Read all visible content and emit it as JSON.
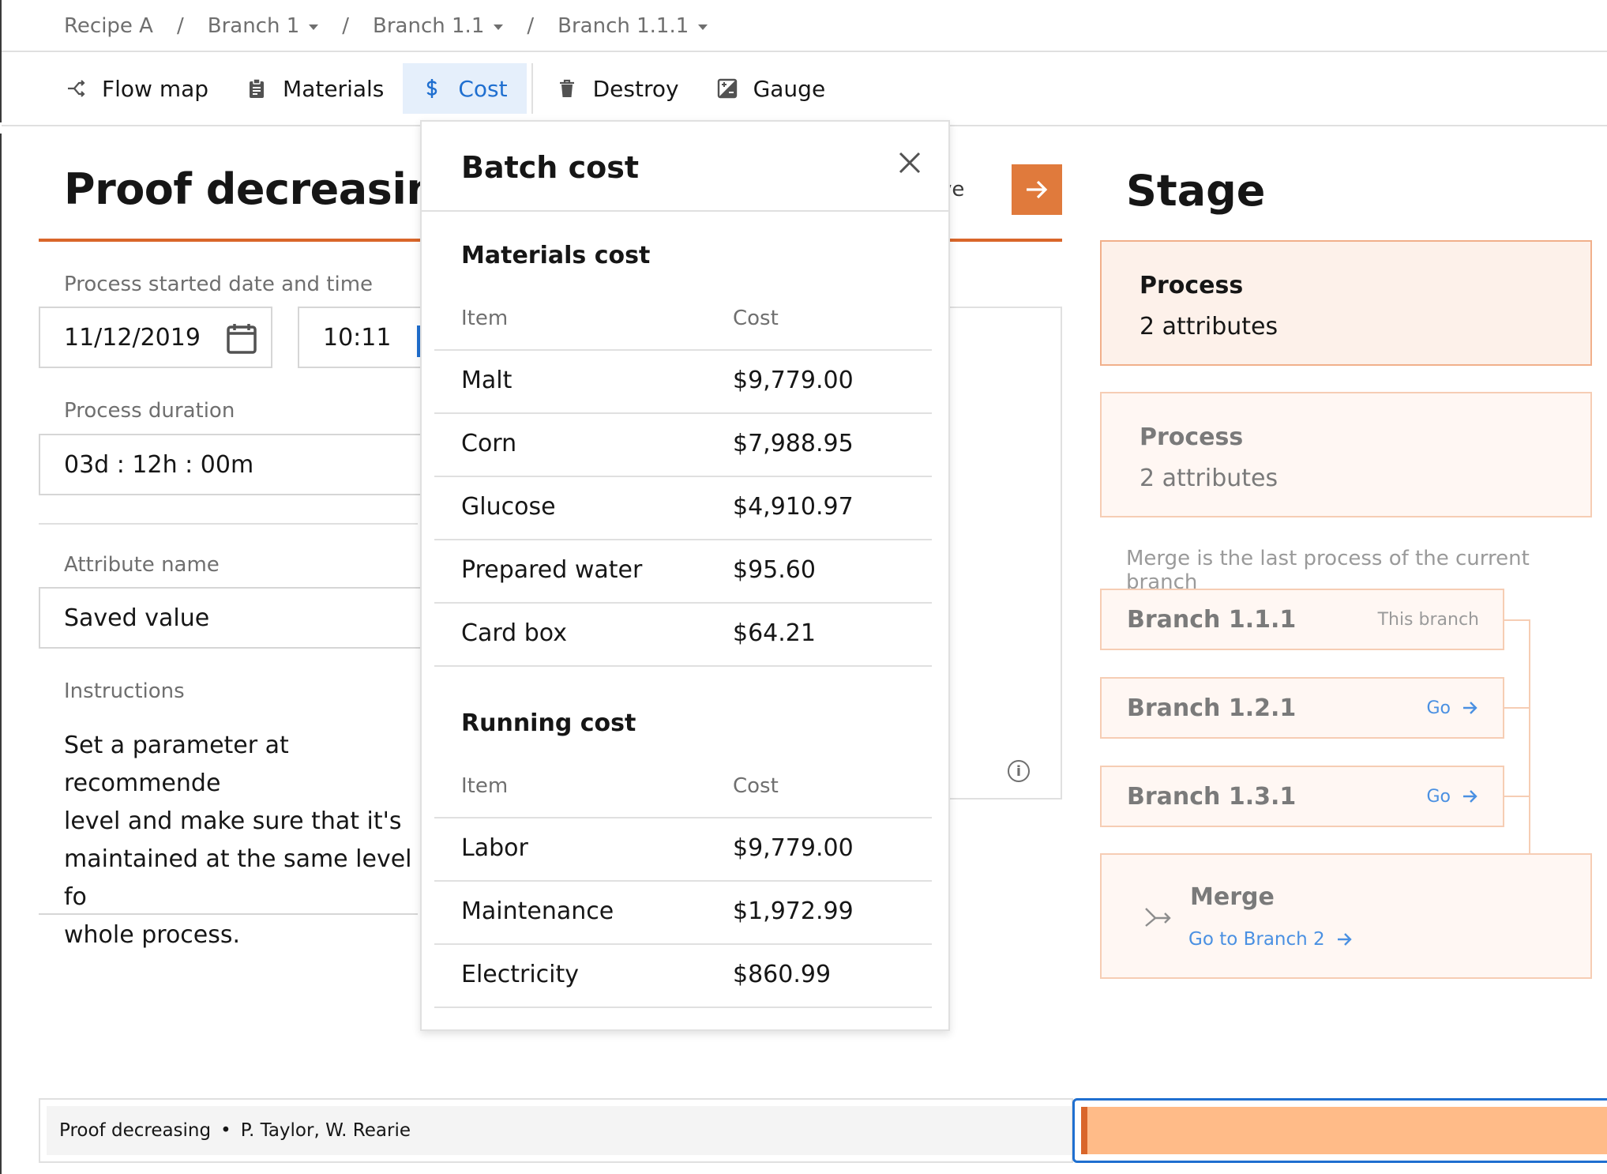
{
  "breadcrumb": [
    {
      "label": "Recipe A",
      "has_menu": false
    },
    {
      "label": "Branch 1",
      "has_menu": true
    },
    {
      "label": "Branch 1.1",
      "has_menu": true
    },
    {
      "label": "Branch 1.1.1",
      "has_menu": true
    }
  ],
  "breadcrumb_separator": "/",
  "toolbar": {
    "flow_map": "Flow map",
    "materials": "Materials",
    "cost": "Cost",
    "destroy": "Destroy",
    "gauge": "Gauge",
    "active": "Cost"
  },
  "main": {
    "title": "Proof decreasing",
    "save_label": "ve",
    "started_label": "Process started date and time",
    "date_value": "11/12/2019",
    "time_value": "10:11",
    "duration_label": "Process duration",
    "duration_value": "03d : 12h : 00m",
    "attribute_label": "Attribute name",
    "attribute_value": "Saved value",
    "instructions_label": "Instructions",
    "instructions_lines": [
      "Set a parameter at recommende",
      "level and make sure that it's",
      "maintained at the same level fo",
      "whole process."
    ]
  },
  "popover": {
    "title": "Batch cost",
    "materials": {
      "title": "Materials cost",
      "col_item": "Item",
      "col_cost": "Cost",
      "rows": [
        {
          "item": "Malt",
          "cost": "$9,779.00"
        },
        {
          "item": "Corn",
          "cost": "$7,988.95"
        },
        {
          "item": "Glucose",
          "cost": "$4,910.97"
        },
        {
          "item": "Prepared water",
          "cost": "$95.60"
        },
        {
          "item": "Card box",
          "cost": "$64.21"
        }
      ]
    },
    "running": {
      "title": "Running cost",
      "col_item": "Item",
      "col_cost": "Cost",
      "rows": [
        {
          "item": "Labor",
          "cost": "$9,779.00"
        },
        {
          "item": "Maintenance",
          "cost": "$1,972.99"
        },
        {
          "item": "Electricity",
          "cost": "$860.99"
        }
      ]
    }
  },
  "stage": {
    "title": "Stage",
    "cards": [
      {
        "title": "Process",
        "subtitle": "2 attributes"
      },
      {
        "title": "Process",
        "subtitle": "2 attributes"
      }
    ],
    "note": "Merge is the last process of the current branch",
    "branches": [
      {
        "name": "Branch 1.1.1",
        "right": "This branch"
      },
      {
        "name": "Branch 1.2.1",
        "right": "Go"
      },
      {
        "name": "Branch 1.3.1",
        "right": "Go"
      }
    ],
    "merge": {
      "title": "Merge",
      "link": "Go to Branch 2"
    }
  },
  "statusbar": {
    "process": "Proof decreasing",
    "bullet": "•",
    "people": "P. Taylor, W. Rearie"
  },
  "colors": {
    "accent_orange": "#e07a3c",
    "accent_blue": "#1f6fd0",
    "progress_fill": "#ffbb88"
  }
}
